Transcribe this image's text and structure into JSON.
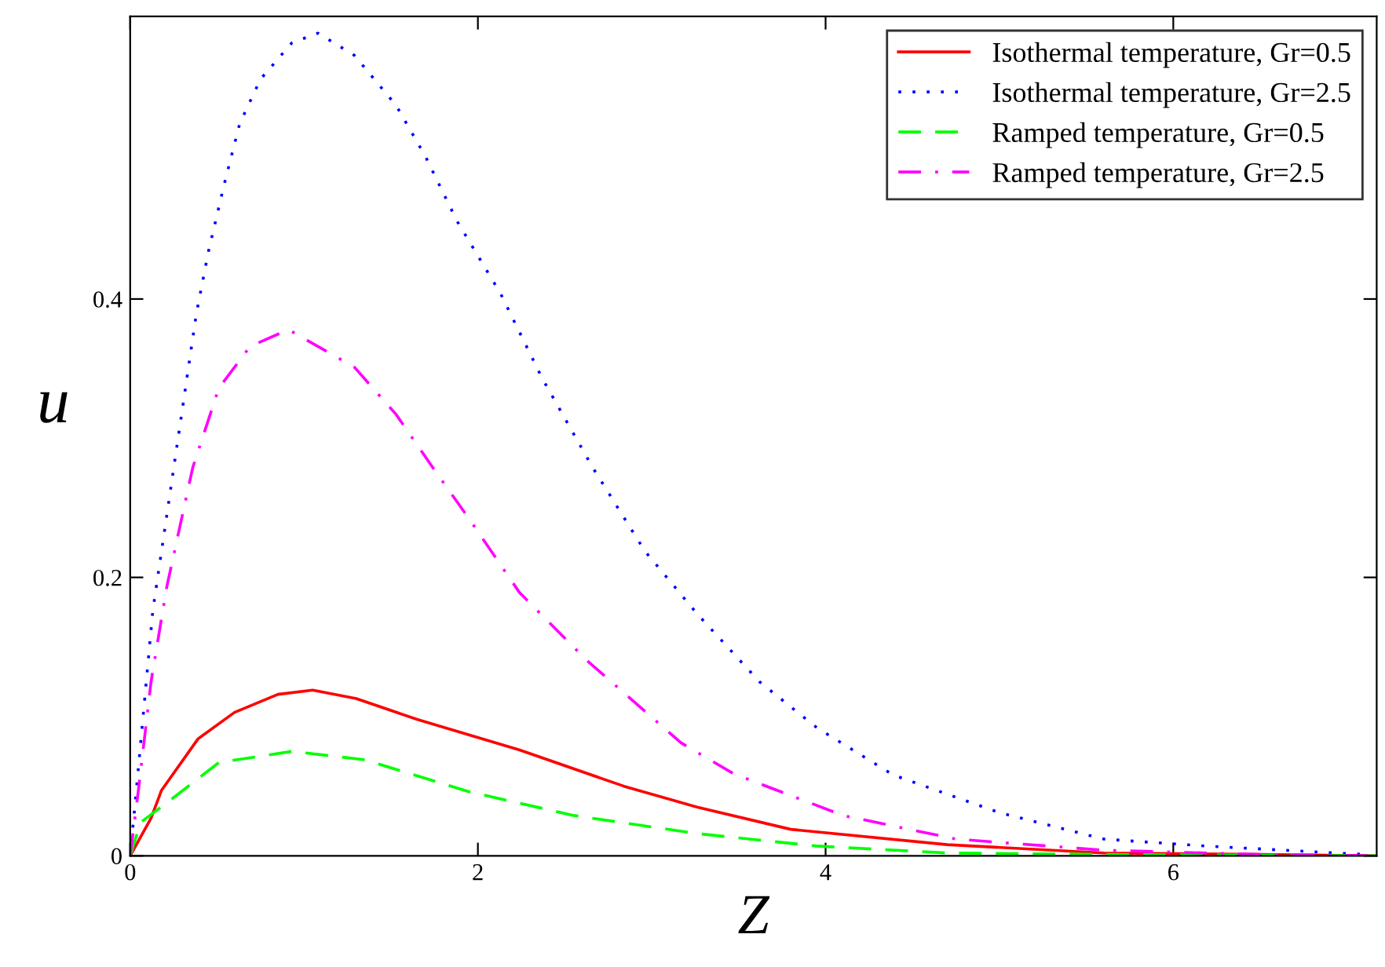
{
  "chart_data": {
    "type": "line",
    "xlabel": "Z",
    "ylabel": "u",
    "xlim": [
      0,
      7.17
    ],
    "ylim": [
      0,
      0.603
    ],
    "xticks": [
      0,
      2,
      4,
      6
    ],
    "yticks": [
      0,
      0.2,
      0.4
    ],
    "grid": false,
    "legend": "top right",
    "marker": "none",
    "series": [
      {
        "name": "Isothermal temperature, Gr=0.5",
        "color": "#ff0000",
        "line_style": "solid",
        "x": [
          0,
          0.12,
          0.18,
          0.39,
          0.6,
          0.85,
          1.05,
          1.3,
          1.65,
          2.24,
          2.84,
          3.26,
          3.8,
          4.7,
          5.6,
          6.5,
          7.17
        ],
        "values": [
          0,
          0.027,
          0.047,
          0.084,
          0.103,
          0.116,
          0.119,
          0.113,
          0.098,
          0.076,
          0.05,
          0.035,
          0.019,
          0.008,
          0.002,
          0.001,
          0
        ]
      },
      {
        "name": "Isothermal temperature, Gr=2.5",
        "color": "#0000ff",
        "line_style": "dotted",
        "x": [
          0,
          0.03,
          0.13,
          0.38,
          0.45,
          0.54,
          0.63,
          0.75,
          0.93,
          1.08,
          1.29,
          1.53,
          1.7,
          1.88,
          2.13,
          2.37,
          2.66,
          2.96,
          3.26,
          3.62,
          3.95,
          4.39,
          5.0,
          5.6,
          6.19,
          7.09
        ],
        "values": [
          0,
          0.04,
          0.176,
          0.389,
          0.434,
          0.482,
          0.526,
          0.558,
          0.584,
          0.591,
          0.575,
          0.539,
          0.502,
          0.456,
          0.404,
          0.343,
          0.279,
          0.219,
          0.174,
          0.125,
          0.092,
          0.058,
          0.031,
          0.012,
          0.007,
          0.001
        ]
      },
      {
        "name": "Ramped temperature, Gr=0.5",
        "color": "#00ff00",
        "line_style": "dashed",
        "x": [
          0,
          0.06,
          0.21,
          0.51,
          0.93,
          1.35,
          1.95,
          2.55,
          3.26,
          3.95,
          4.7,
          5.6,
          7.17
        ],
        "values": [
          0,
          0.024,
          0.038,
          0.067,
          0.075,
          0.069,
          0.046,
          0.029,
          0.016,
          0.007,
          0.002,
          0.001,
          0
        ]
      },
      {
        "name": "Ramped temperature, Gr=2.5",
        "color": "#ff00ff",
        "line_style": "dashdot",
        "x": [
          0,
          0.05,
          0.12,
          0.21,
          0.36,
          0.51,
          0.69,
          0.91,
          1.29,
          1.53,
          1.74,
          1.95,
          2.24,
          2.63,
          3.17,
          3.47,
          4.1,
          4.75,
          5.6,
          6.5,
          7.17
        ],
        "values": [
          0,
          0.05,
          0.125,
          0.193,
          0.279,
          0.336,
          0.366,
          0.378,
          0.351,
          0.317,
          0.279,
          0.242,
          0.189,
          0.14,
          0.081,
          0.059,
          0.029,
          0.012,
          0.004,
          0.001,
          0
        ]
      }
    ]
  }
}
